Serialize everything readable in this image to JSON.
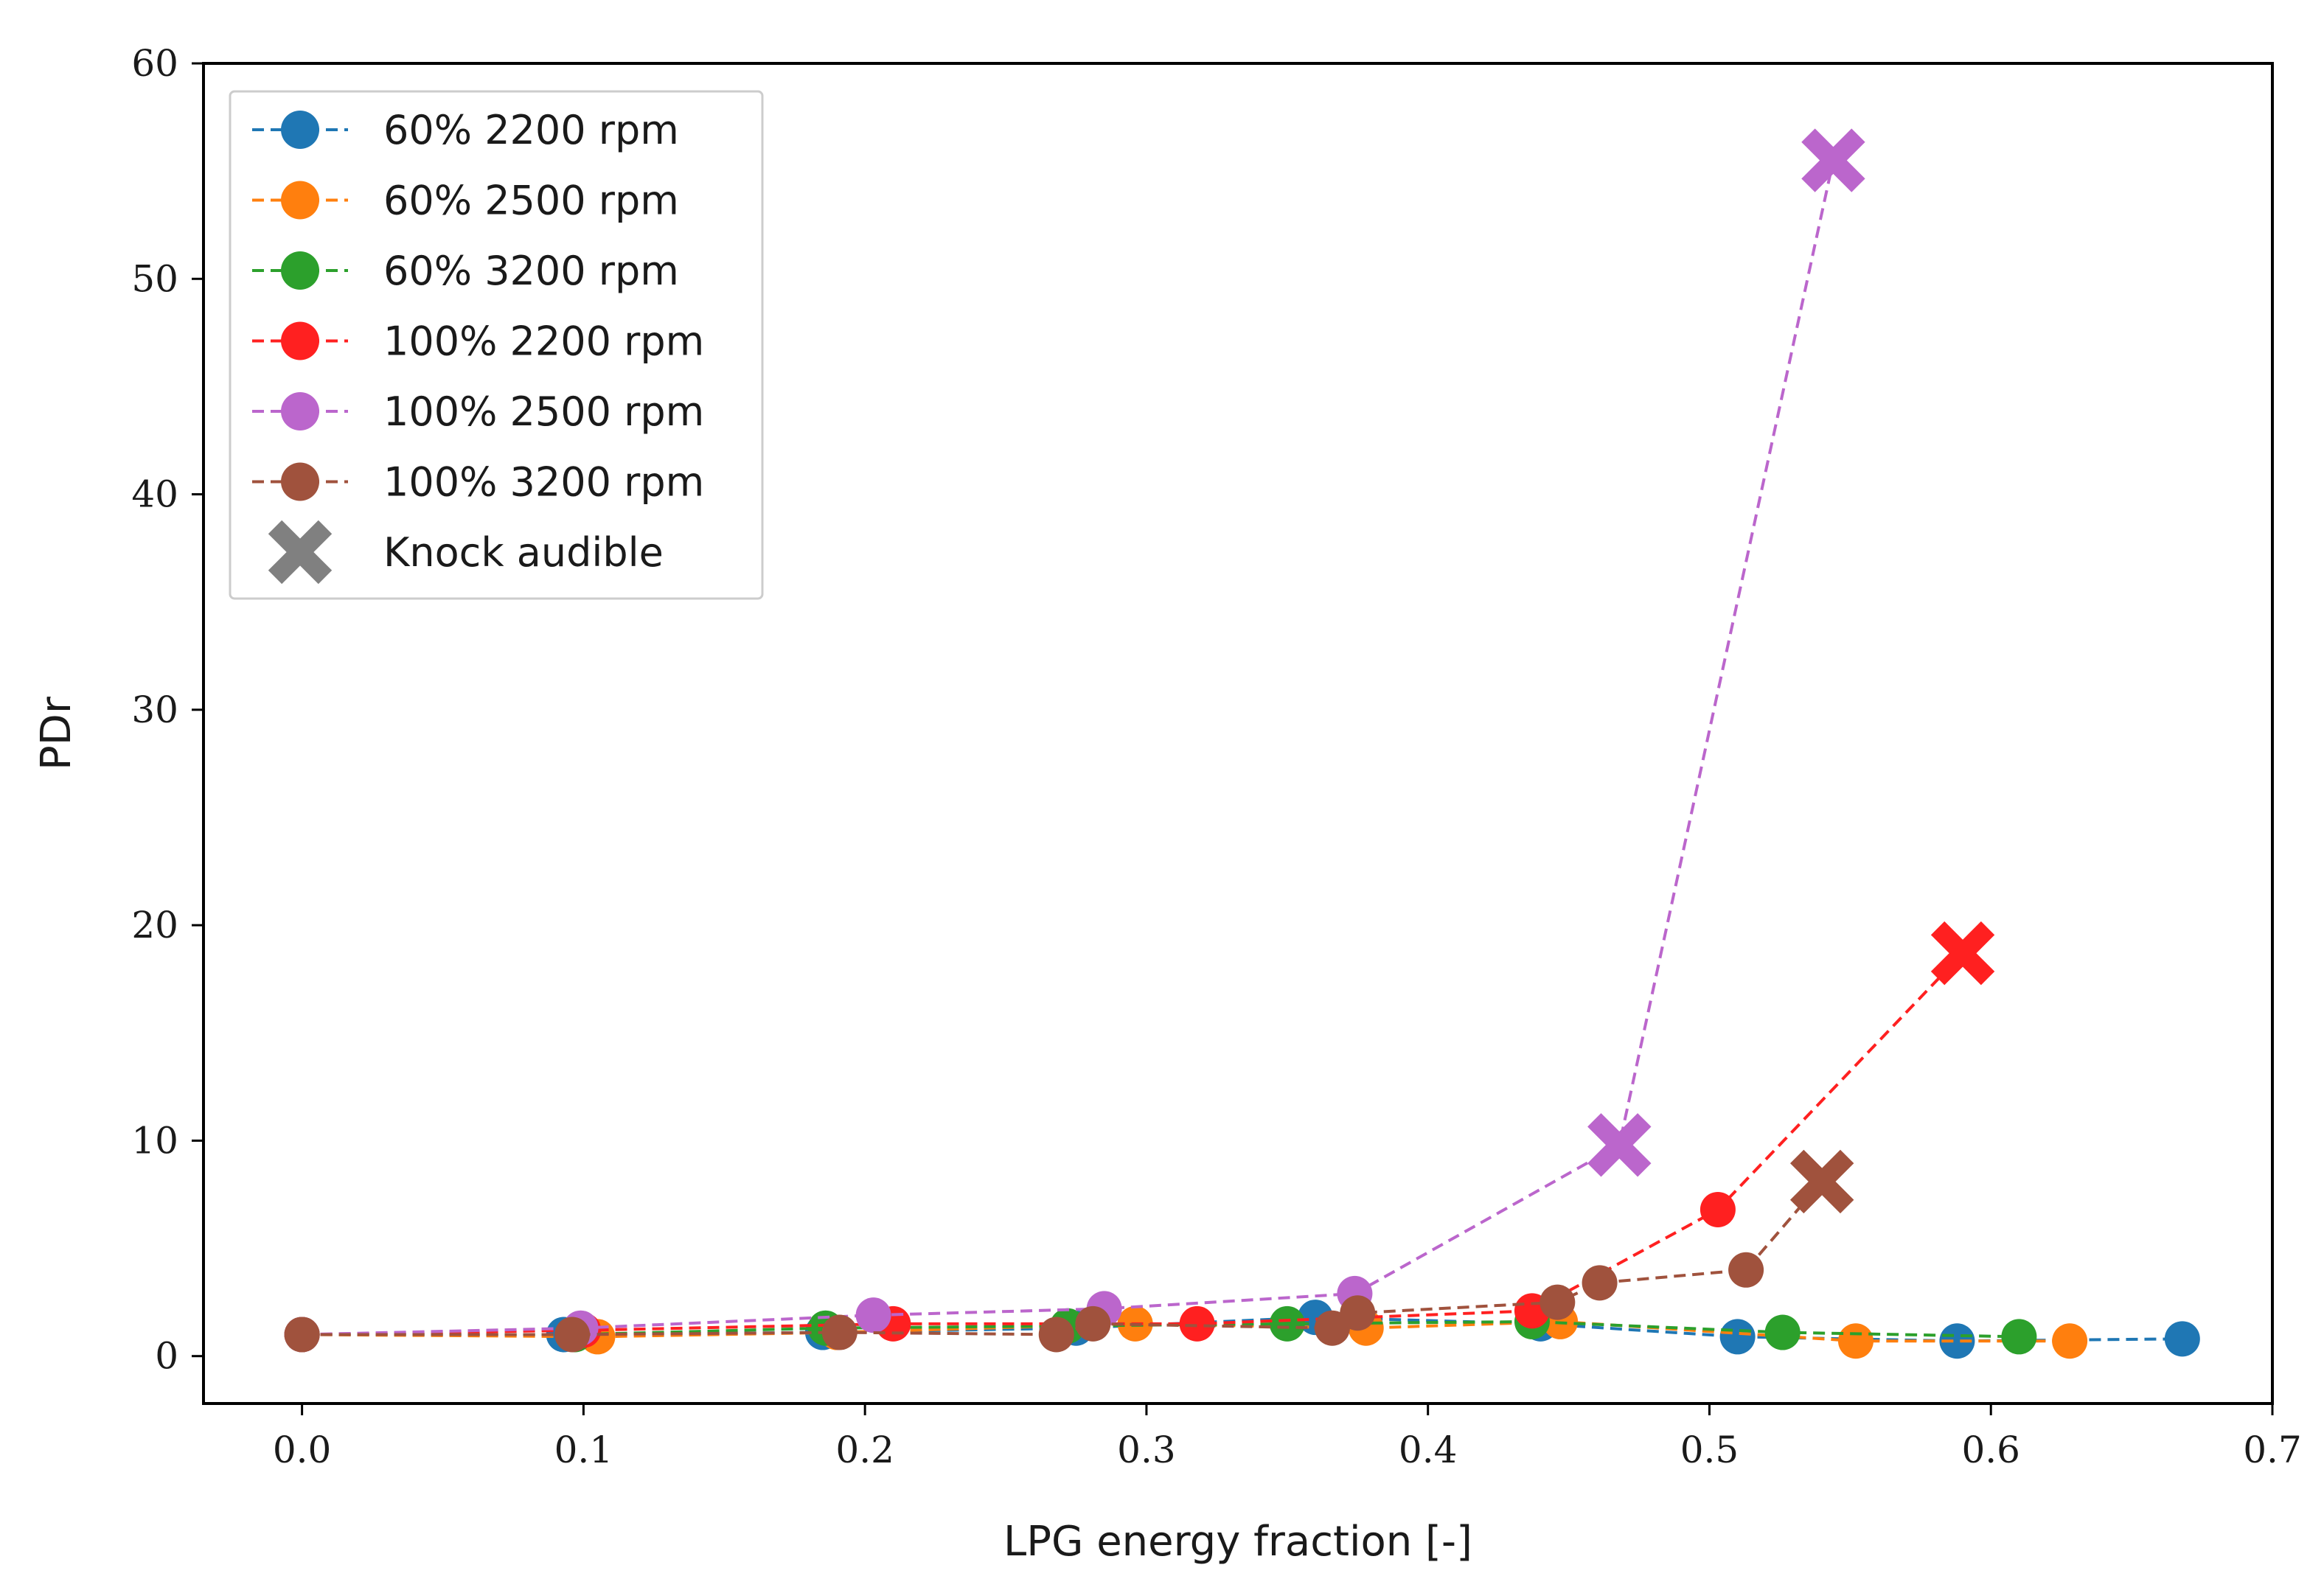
{
  "chart_data": {
    "type": "line",
    "title": "",
    "xlabel": "LPG energy fraction [-]",
    "ylabel": "PDr",
    "xlim": [
      -0.035,
      0.7
    ],
    "ylim": [
      -2.2,
      60
    ],
    "xticks": [
      0.0,
      0.1,
      0.2,
      0.3,
      0.4,
      0.5,
      0.6,
      0.7
    ],
    "xtick_labels": [
      "0.0",
      "0.1",
      "0.2",
      "0.3",
      "0.4",
      "0.5",
      "0.6",
      "0.7"
    ],
    "yticks": [
      0,
      10,
      20,
      30,
      40,
      50,
      60
    ],
    "ytick_labels": [
      "0",
      "10",
      "20",
      "30",
      "40",
      "50",
      "60"
    ],
    "grid": false,
    "legend_position": "top-left",
    "series": [
      {
        "name": "60% 2200 rpm",
        "color": "#1f77b4",
        "x": [
          0.0,
          0.093,
          0.185,
          0.275,
          0.36,
          0.44,
          0.51,
          0.588,
          0.668
        ],
        "y": [
          1.0,
          1.0,
          1.1,
          1.3,
          1.8,
          1.5,
          0.9,
          0.7,
          0.8
        ]
      },
      {
        "name": "60% 2500 rpm",
        "color": "#ff7f0e",
        "x": [
          0.0,
          0.105,
          0.19,
          0.296,
          0.378,
          0.447,
          0.552,
          0.628
        ],
        "y": [
          1.0,
          0.9,
          1.1,
          1.5,
          1.3,
          1.6,
          0.7,
          0.7
        ]
      },
      {
        "name": "60% 3200 rpm",
        "color": "#2ca02c",
        "x": [
          0.0,
          0.097,
          0.186,
          0.272,
          0.35,
          0.437,
          0.526,
          0.61
        ],
        "y": [
          1.0,
          1.0,
          1.3,
          1.4,
          1.5,
          1.6,
          1.1,
          0.9
        ]
      },
      {
        "name": "100% 2200 rpm",
        "color": "#ff2020",
        "x": [
          0.0,
          0.1,
          0.21,
          0.318,
          0.437,
          0.503,
          0.59
        ],
        "y": [
          1.0,
          1.2,
          1.5,
          1.5,
          2.1,
          6.8,
          18.7
        ],
        "knock_x": [
          0.59
        ],
        "knock_y": [
          18.7
        ]
      },
      {
        "name": "100% 2500 rpm",
        "color": "#bb66cc",
        "x": [
          0.0,
          0.099,
          0.203,
          0.285,
          0.374,
          0.468,
          0.544
        ],
        "y": [
          1.0,
          1.3,
          1.9,
          2.2,
          2.9,
          9.8,
          55.5
        ],
        "knock_x": [
          0.468,
          0.544
        ],
        "knock_y": [
          9.8,
          55.5
        ]
      },
      {
        "name": "100% 3200 rpm",
        "color": "#a0523d",
        "x": [
          0.0,
          0.096,
          0.191,
          0.268,
          0.281,
          0.366,
          0.375,
          0.446,
          0.461,
          0.513,
          0.54
        ],
        "y": [
          1.0,
          1.0,
          1.1,
          1.0,
          1.5,
          1.3,
          2.0,
          2.5,
          3.4,
          4.0,
          8.1
        ],
        "knock_x": [
          0.54
        ],
        "knock_y": [
          8.1
        ]
      }
    ],
    "legend": [
      {
        "label": "60% 2200 rpm",
        "marker": "circle",
        "color": "#1f77b4"
      },
      {
        "label": "60% 2500 rpm",
        "marker": "circle",
        "color": "#ff7f0e"
      },
      {
        "label": "60% 3200 rpm",
        "marker": "circle",
        "color": "#2ca02c"
      },
      {
        "label": "100% 2200 rpm",
        "marker": "circle",
        "color": "#ff2020"
      },
      {
        "label": "100% 2500 rpm",
        "marker": "circle",
        "color": "#bb66cc"
      },
      {
        "label": "100% 3200 rpm",
        "marker": "circle",
        "color": "#a0523d"
      },
      {
        "label": "Knock audible",
        "marker": "x",
        "color": "#808080"
      }
    ]
  }
}
